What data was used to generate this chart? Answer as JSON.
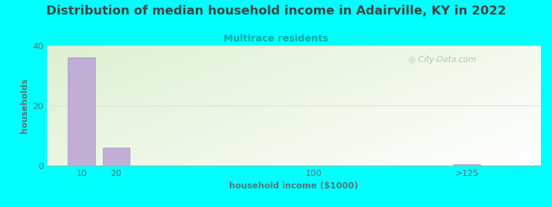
{
  "title": "Distribution of median household income in Adairville, KY in 2022",
  "subtitle": "Multirace residents",
  "xlabel": "household income ($1000)",
  "ylabel": "households",
  "title_fontsize": 13,
  "subtitle_fontsize": 10,
  "subtitle_color": "#00AAAA",
  "xlabel_fontsize": 9,
  "ylabel_fontsize": 9,
  "background_color": "#00FFFF",
  "bar_color": "#c0aed4",
  "bar_edge_color": "#b0a0c8",
  "categories": [
    "10",
    "20",
    "100",
    ">125"
  ],
  "values": [
    36,
    6,
    0,
    0.5
  ],
  "ylim": [
    0,
    40
  ],
  "yticks": [
    0,
    20,
    40
  ],
  "watermark_text": "City-Data.com",
  "watermark_color": "#aabbbb",
  "grid_color": "#dddddd",
  "text_color": "#444444",
  "tick_color": "#557777"
}
